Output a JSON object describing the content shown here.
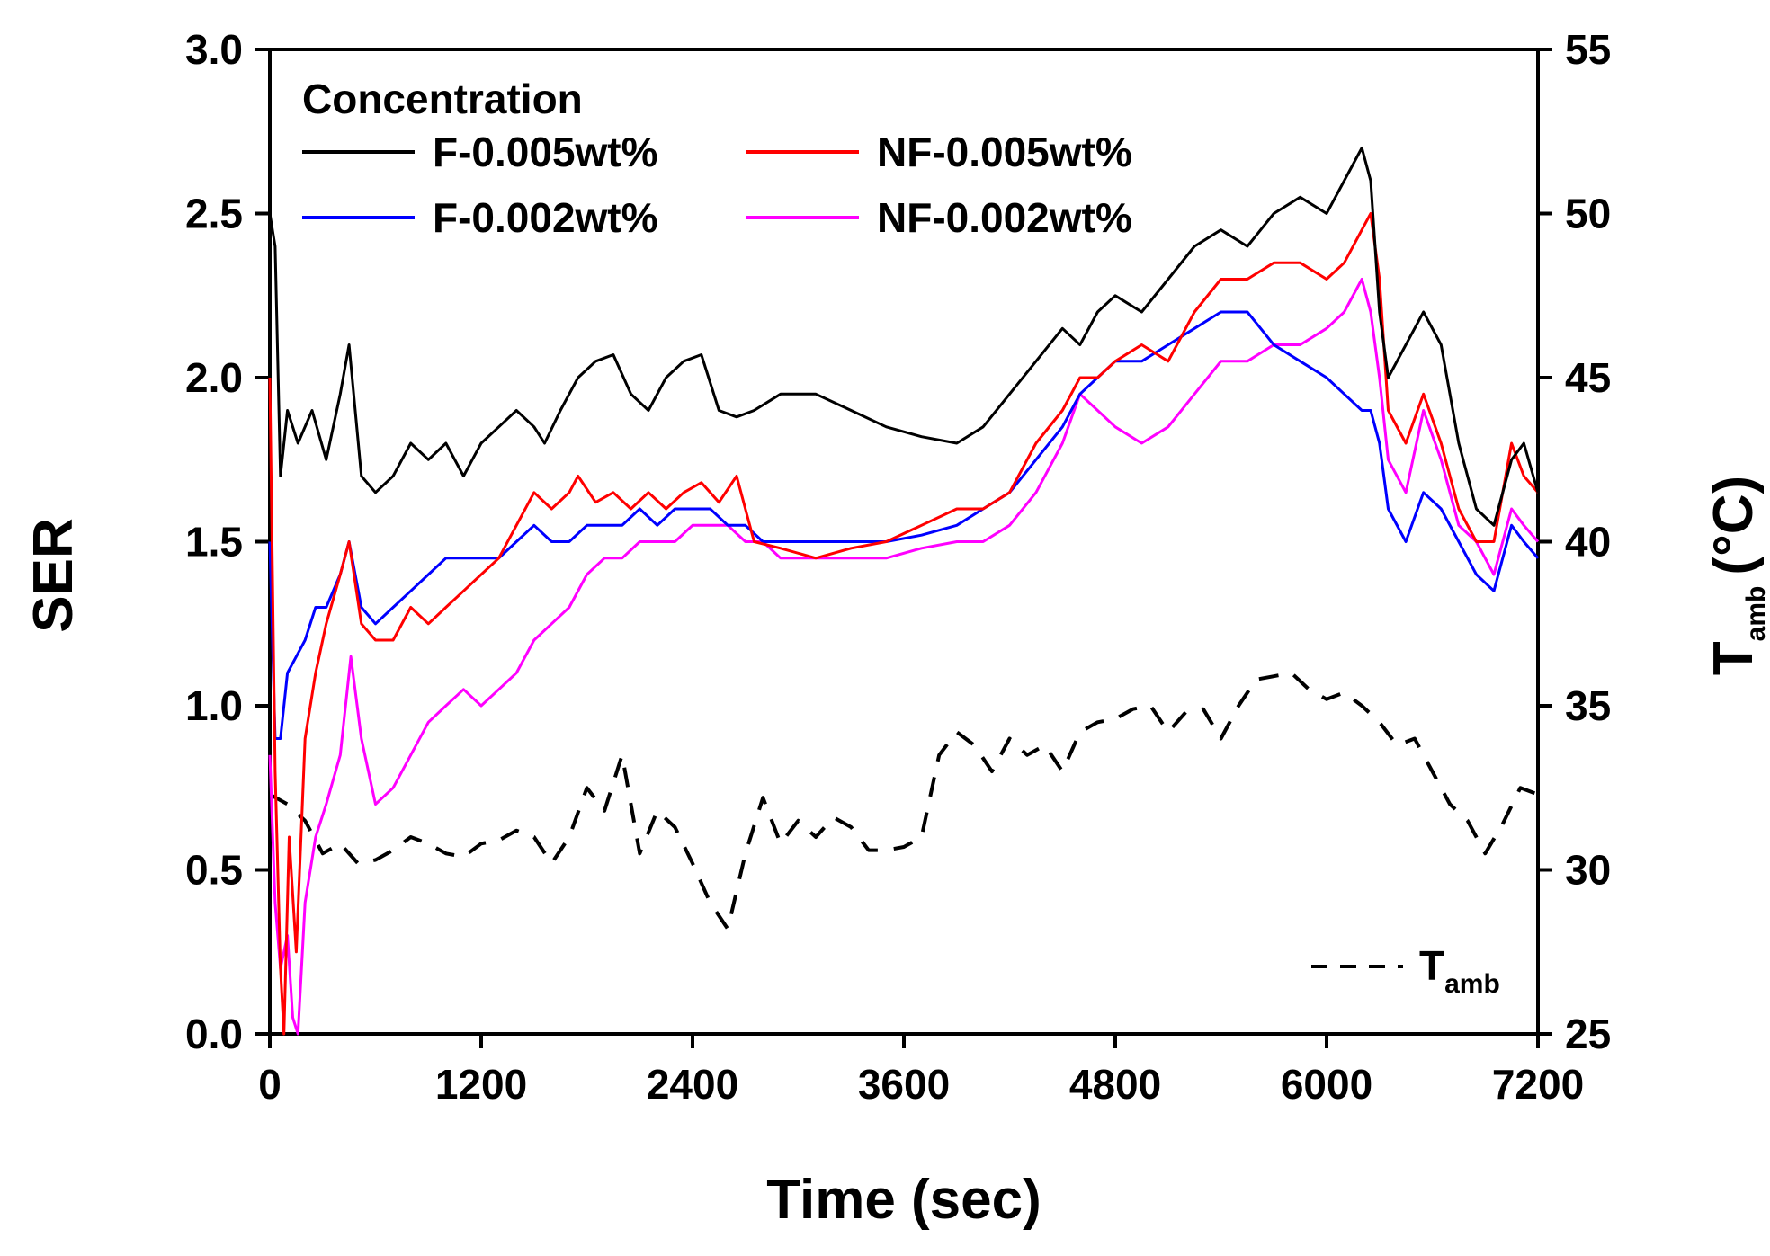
{
  "chart_data": {
    "type": "line",
    "xlabel": "Time (sec)",
    "ylabel": "SER",
    "y2label": "T",
    "y2label_sub": "amb",
    "y2label_unit": "(°C)",
    "xlim": [
      0,
      7200
    ],
    "ylim": [
      0,
      3.0
    ],
    "y2lim": [
      25,
      55
    ],
    "xticks": [
      0,
      1200,
      2400,
      3600,
      4800,
      6000,
      7200
    ],
    "yticks": [
      0.0,
      0.5,
      1.0,
      1.5,
      2.0,
      2.5,
      3.0
    ],
    "ytick_labels": [
      "0.0",
      "0.5",
      "1.0",
      "1.5",
      "2.0",
      "2.5",
      "3.0"
    ],
    "y2ticks": [
      25,
      30,
      35,
      40,
      45,
      50,
      55
    ],
    "legend": {
      "title": "Concentration",
      "position": "top-left"
    },
    "tamb_legend": {
      "label": "T",
      "sub": "amb",
      "position": "bottom-right"
    },
    "series": [
      {
        "name": "F-0.005wt%",
        "color": "#000000",
        "axis": "left",
        "x": [
          0,
          30,
          60,
          100,
          160,
          240,
          320,
          400,
          450,
          520,
          600,
          700,
          800,
          900,
          1000,
          1100,
          1200,
          1300,
          1400,
          1500,
          1560,
          1650,
          1750,
          1850,
          1950,
          2050,
          2150,
          2250,
          2350,
          2450,
          2550,
          2650,
          2750,
          2900,
          3100,
          3300,
          3500,
          3700,
          3900,
          4050,
          4200,
          4350,
          4500,
          4600,
          4700,
          4800,
          4950,
          5100,
          5250,
          5400,
          5550,
          5700,
          5850,
          6000,
          6100,
          6200,
          6250,
          6300,
          6350,
          6450,
          6550,
          6650,
          6750,
          6850,
          6950,
          7050,
          7120,
          7200
        ],
        "values": [
          2.5,
          2.4,
          1.7,
          1.9,
          1.8,
          1.9,
          1.75,
          1.95,
          2.1,
          1.7,
          1.65,
          1.7,
          1.8,
          1.75,
          1.8,
          1.7,
          1.8,
          1.85,
          1.9,
          1.85,
          1.8,
          1.9,
          2.0,
          2.05,
          2.07,
          1.95,
          1.9,
          2.0,
          2.05,
          2.07,
          1.9,
          1.88,
          1.9,
          1.95,
          1.95,
          1.9,
          1.85,
          1.82,
          1.8,
          1.85,
          1.95,
          2.05,
          2.15,
          2.1,
          2.2,
          2.25,
          2.2,
          2.3,
          2.4,
          2.45,
          2.4,
          2.5,
          2.55,
          2.5,
          2.6,
          2.7,
          2.6,
          2.2,
          2.0,
          2.1,
          2.2,
          2.1,
          1.8,
          1.6,
          1.55,
          1.75,
          1.8,
          1.65
        ]
      },
      {
        "name": "NF-0.005wt%",
        "color": "#ff0000",
        "axis": "left",
        "x": [
          0,
          30,
          60,
          80,
          110,
          150,
          200,
          260,
          320,
          400,
          450,
          520,
          600,
          700,
          800,
          900,
          1000,
          1100,
          1200,
          1300,
          1400,
          1500,
          1600,
          1700,
          1750,
          1850,
          1950,
          2050,
          2150,
          2250,
          2350,
          2450,
          2550,
          2650,
          2750,
          2900,
          3100,
          3300,
          3500,
          3700,
          3900,
          4050,
          4200,
          4350,
          4500,
          4600,
          4700,
          4800,
          4950,
          5100,
          5250,
          5400,
          5550,
          5700,
          5850,
          6000,
          6100,
          6200,
          6250,
          6300,
          6350,
          6450,
          6550,
          6650,
          6750,
          6850,
          6950,
          7050,
          7120,
          7200
        ],
        "values": [
          2.0,
          0.8,
          0.2,
          0.0,
          0.6,
          0.25,
          0.9,
          1.1,
          1.25,
          1.4,
          1.5,
          1.25,
          1.2,
          1.2,
          1.3,
          1.25,
          1.3,
          1.35,
          1.4,
          1.45,
          1.55,
          1.65,
          1.6,
          1.65,
          1.7,
          1.62,
          1.65,
          1.6,
          1.65,
          1.6,
          1.65,
          1.68,
          1.62,
          1.7,
          1.5,
          1.48,
          1.45,
          1.48,
          1.5,
          1.55,
          1.6,
          1.6,
          1.65,
          1.8,
          1.9,
          2.0,
          2.0,
          2.05,
          2.1,
          2.05,
          2.2,
          2.3,
          2.3,
          2.35,
          2.35,
          2.3,
          2.35,
          2.45,
          2.5,
          2.3,
          1.9,
          1.8,
          1.95,
          1.8,
          1.6,
          1.5,
          1.5,
          1.8,
          1.7,
          1.65
        ]
      },
      {
        "name": "F-0.002wt%",
        "color": "#0000ff",
        "axis": "left",
        "x": [
          0,
          30,
          60,
          100,
          150,
          200,
          260,
          320,
          400,
          450,
          520,
          600,
          700,
          800,
          900,
          1000,
          1100,
          1200,
          1300,
          1400,
          1500,
          1600,
          1700,
          1800,
          1900,
          2000,
          2100,
          2200,
          2300,
          2400,
          2500,
          2600,
          2700,
          2800,
          2900,
          3100,
          3300,
          3500,
          3700,
          3900,
          4050,
          4200,
          4350,
          4500,
          4600,
          4700,
          4800,
          4950,
          5100,
          5250,
          5400,
          5550,
          5700,
          5850,
          6000,
          6100,
          6200,
          6250,
          6300,
          6350,
          6450,
          6550,
          6650,
          6750,
          6850,
          6950,
          7050,
          7120,
          7200
        ],
        "values": [
          1.5,
          0.9,
          0.9,
          1.1,
          1.15,
          1.2,
          1.3,
          1.3,
          1.4,
          1.5,
          1.3,
          1.25,
          1.3,
          1.35,
          1.4,
          1.45,
          1.45,
          1.45,
          1.45,
          1.5,
          1.55,
          1.5,
          1.5,
          1.55,
          1.55,
          1.55,
          1.6,
          1.55,
          1.6,
          1.6,
          1.6,
          1.55,
          1.55,
          1.5,
          1.5,
          1.5,
          1.5,
          1.5,
          1.52,
          1.55,
          1.6,
          1.65,
          1.75,
          1.85,
          1.95,
          2.0,
          2.05,
          2.05,
          2.1,
          2.15,
          2.2,
          2.2,
          2.1,
          2.05,
          2.0,
          1.95,
          1.9,
          1.9,
          1.8,
          1.6,
          1.5,
          1.65,
          1.6,
          1.5,
          1.4,
          1.35,
          1.55,
          1.5,
          1.45
        ]
      },
      {
        "name": "NF-0.002wt%",
        "color": "#ff00ff",
        "axis": "left",
        "x": [
          0,
          30,
          60,
          100,
          130,
          160,
          200,
          260,
          320,
          400,
          460,
          520,
          600,
          700,
          800,
          900,
          1000,
          1100,
          1200,
          1300,
          1400,
          1500,
          1600,
          1700,
          1800,
          1900,
          2000,
          2100,
          2200,
          2300,
          2400,
          2500,
          2600,
          2700,
          2800,
          2900,
          3100,
          3300,
          3500,
          3700,
          3900,
          4050,
          4200,
          4350,
          4500,
          4600,
          4700,
          4800,
          4950,
          5100,
          5250,
          5400,
          5550,
          5700,
          5850,
          6000,
          6100,
          6200,
          6250,
          6300,
          6350,
          6450,
          6550,
          6650,
          6750,
          6850,
          6950,
          7050,
          7120,
          7200
        ],
        "values": [
          0.85,
          0.4,
          0.2,
          0.3,
          0.05,
          0.0,
          0.4,
          0.6,
          0.7,
          0.85,
          1.15,
          0.9,
          0.7,
          0.75,
          0.85,
          0.95,
          1.0,
          1.05,
          1.0,
          1.05,
          1.1,
          1.2,
          1.25,
          1.3,
          1.4,
          1.45,
          1.45,
          1.5,
          1.5,
          1.5,
          1.55,
          1.55,
          1.55,
          1.5,
          1.5,
          1.45,
          1.45,
          1.45,
          1.45,
          1.48,
          1.5,
          1.5,
          1.55,
          1.65,
          1.8,
          1.95,
          1.9,
          1.85,
          1.8,
          1.85,
          1.95,
          2.05,
          2.05,
          2.1,
          2.1,
          2.15,
          2.2,
          2.3,
          2.2,
          2.0,
          1.75,
          1.65,
          1.9,
          1.75,
          1.55,
          1.5,
          1.4,
          1.6,
          1.55,
          1.5
        ]
      },
      {
        "name": "T_amb",
        "color": "#000000",
        "axis": "right",
        "dashed": true,
        "x": [
          0,
          100,
          200,
          300,
          400,
          500,
          600,
          700,
          800,
          900,
          1000,
          1100,
          1200,
          1300,
          1400,
          1500,
          1600,
          1700,
          1800,
          1900,
          2000,
          2100,
          2200,
          2300,
          2400,
          2500,
          2600,
          2700,
          2800,
          2900,
          3000,
          3100,
          3200,
          3300,
          3400,
          3500,
          3600,
          3700,
          3800,
          3900,
          4000,
          4100,
          4200,
          4300,
          4400,
          4500,
          4600,
          4700,
          4800,
          4900,
          5000,
          5100,
          5200,
          5300,
          5400,
          5500,
          5600,
          5700,
          5800,
          5900,
          6000,
          6100,
          6200,
          6300,
          6400,
          6500,
          6600,
          6700,
          6800,
          6900,
          7000,
          7100,
          7200
        ],
        "values": [
          32.3,
          32.0,
          31.5,
          30.5,
          30.8,
          30.2,
          30.3,
          30.6,
          31.0,
          30.8,
          30.5,
          30.4,
          30.8,
          30.9,
          31.2,
          31.0,
          30.2,
          31.0,
          32.5,
          31.8,
          33.5,
          30.5,
          31.8,
          31.3,
          30.2,
          29.0,
          28.2,
          30.5,
          32.2,
          30.8,
          31.5,
          31.0,
          31.6,
          31.3,
          30.6,
          30.6,
          30.7,
          31.0,
          33.5,
          34.2,
          33.8,
          33.0,
          34.0,
          33.5,
          33.8,
          33.0,
          34.2,
          34.5,
          34.6,
          34.9,
          35.0,
          34.2,
          34.8,
          34.9,
          34.0,
          35.0,
          35.8,
          35.9,
          36.0,
          35.5,
          35.2,
          35.4,
          35.0,
          34.5,
          33.8,
          34.0,
          33.0,
          32.0,
          31.5,
          30.5,
          31.4,
          32.5,
          32.3
        ]
      }
    ]
  }
}
